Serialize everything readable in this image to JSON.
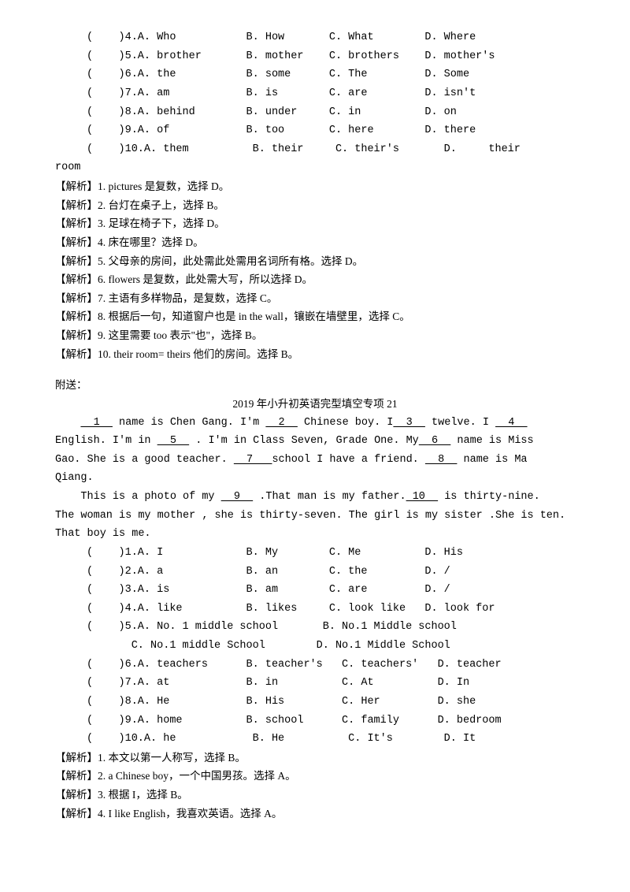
{
  "questions1": [
    {
      "n": "4",
      "a": "Who",
      "b": "How",
      "c": "What",
      "d": "Where"
    },
    {
      "n": "5",
      "a": "brother",
      "b": "mother",
      "c": "brothers",
      "d": "mother's"
    },
    {
      "n": "6",
      "a": "the",
      "b": "some",
      "c": "The",
      "d": "Some"
    },
    {
      "n": "7",
      "a": "am",
      "b": "is",
      "c": "are",
      "d": "isn't"
    },
    {
      "n": "8",
      "a": "behind",
      "b": "under",
      "c": "in",
      "d": "on"
    },
    {
      "n": "9",
      "a": "of",
      "b": "too",
      "c": "here",
      "d": "there"
    }
  ],
  "q10": {
    "n": "10",
    "a": "them",
    "b": "their",
    "c": "their's",
    "d": "their"
  },
  "roomtail": "room",
  "analysis_label": "【解析】",
  "analysis1": [
    {
      "n": "1.",
      "t": "pictures 是复数，选择 D。"
    },
    {
      "n": "2.",
      "t": "台灯在桌子上，选择 B。"
    },
    {
      "n": "3.",
      "t": "足球在椅子下，选择 D。"
    },
    {
      "n": "4.",
      "t": "床在哪里？选择 D。"
    },
    {
      "n": "5.",
      "t": "父母亲的房间，此处需此处需用名词所有格。选择 D。"
    },
    {
      "n": "6.",
      "t": "flowers 是复数，此处需大写，所以选择 D。"
    },
    {
      "n": "7.",
      "t": "主语有多样物品，是复数，选择 C。"
    },
    {
      "n": "8.",
      "t": "根据后一句，知道窗户也是 in the wall，镶嵌在墙壁里，选择 C。"
    },
    {
      "n": "9.",
      "t": "这里需要 too 表示\"也\"，选择 B。"
    },
    {
      "n": "10.",
      "t": "their room= theirs 他们的房间。选择 B。"
    }
  ],
  "attach": "附送：",
  "title2": "2019 年小升初英语完型填空专项 21",
  "passage": {
    "p1a": " name is Chen Gang. I'm ",
    "p1b": " Chinese boy. I",
    "p1c": " twelve. I ",
    "p2a": "English. I'm in ",
    "p2b": " . I'm in Class Seven, Grade One. My",
    "p2c": " name is Miss",
    "p3a": "Gao. She is a good teacher. ",
    "p3b": "school I have a friend. ",
    "p3c": " name is Ma",
    "p4": "Qiang.",
    "p5a": "This is a photo of my ",
    "p5b": " .That man is my father.",
    "p5c": " is thirty-nine.",
    "p6": "The woman is my mother , she is thirty-seven. The girl is my sister .She is ten.",
    "p7": "That boy is me.",
    "u1": "  1  ",
    "u2": "  2  ",
    "u3": "  3  ",
    "u4": "  4  ",
    "u5": "  5  ",
    "u6": "  6  ",
    "u7": "  7   ",
    "u8": "  8  ",
    "u9": "  9  ",
    "u10": " 10  "
  },
  "questions2": [
    {
      "n": "1",
      "a": "I",
      "b": "My",
      "c": "Me",
      "d": "His"
    },
    {
      "n": "2",
      "a": "a",
      "b": "an",
      "c": "the",
      "d": "/"
    },
    {
      "n": "3",
      "a": "is",
      "b": "am",
      "c": "are",
      "d": "/"
    },
    {
      "n": "4",
      "a": "like",
      "b": "likes",
      "c": "look like",
      "d": "look for"
    }
  ],
  "q2_5": {
    "n": "5",
    "a": "No. 1 middle school",
    "b": "No.1 Middle school",
    "c": "No.1 middle School",
    "d": "No.1 Middle School"
  },
  "questions2b": [
    {
      "n": "6",
      "a": "teachers",
      "b": "teacher's",
      "c": "teachers'",
      "d": "teacher"
    },
    {
      "n": "7",
      "a": "at",
      "b": "in",
      "c": "At",
      "d": "In"
    },
    {
      "n": "8",
      "a": "He",
      "b": "His",
      "c": "Her",
      "d": "she"
    },
    {
      "n": "9",
      "a": "home",
      "b": "school",
      "c": "family",
      "d": "bedroom"
    },
    {
      "n": "10",
      "a": "he",
      "b": "He",
      "c": "It's",
      "d": "It"
    }
  ],
  "analysis2": [
    {
      "n": "1.",
      "t": "本文以第一人称写，选择 B。"
    },
    {
      "n": "2.",
      "t": "a Chinese boy，一个中国男孩。选择 A。"
    },
    {
      "n": "3.",
      "t": "根据 I，选择 B。"
    },
    {
      "n": "4.",
      "t": "I like English，我喜欢英语。选择 A。"
    }
  ]
}
